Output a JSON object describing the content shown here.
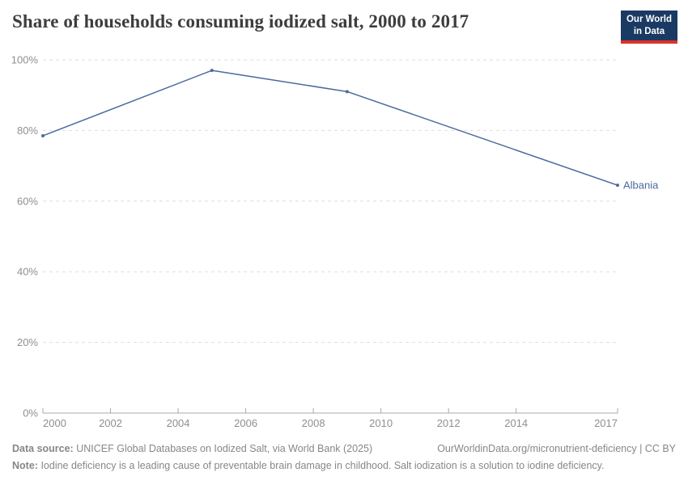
{
  "header": {
    "title": "Share of households consuming iodized salt, 2000 to 2017",
    "logo_line1": "Our World",
    "logo_line2": "in Data"
  },
  "chart_data": {
    "type": "line",
    "title": "Share of households consuming iodized salt, 2000 to 2017",
    "series": [
      {
        "name": "Albania",
        "points": [
          [
            2000,
            78.5
          ],
          [
            2005,
            97
          ],
          [
            2009,
            91
          ],
          [
            2017,
            64.5
          ]
        ]
      }
    ],
    "xlim": [
      2000,
      2017
    ],
    "ylim": [
      0,
      100
    ],
    "x_ticks": [
      2000,
      2002,
      2004,
      2006,
      2008,
      2010,
      2012,
      2014,
      2017
    ],
    "y_ticks": [
      0,
      20,
      40,
      60,
      80,
      100
    ],
    "y_suffix": "%",
    "grid": "horizontal-dashed",
    "legend_position": "end-of-line-label"
  },
  "colors": {
    "line": "#4c6a9c",
    "grid": "#dedede",
    "axis": "#a8a8a8",
    "tick_text": "#8f8f8f",
    "entity_label": "#4c6a9c"
  },
  "footer": {
    "datasource_label": "Data source:",
    "datasource_text": "UNICEF Global Databases on Iodized Salt, via World Bank (2025)",
    "link": "OurWorldinData.org/micronutrient-deficiency | CC BY",
    "note_label": "Note:",
    "note_text": "Iodine deficiency is a leading cause of preventable brain damage in childhood. Salt iodization is a solution to iodine deficiency."
  }
}
